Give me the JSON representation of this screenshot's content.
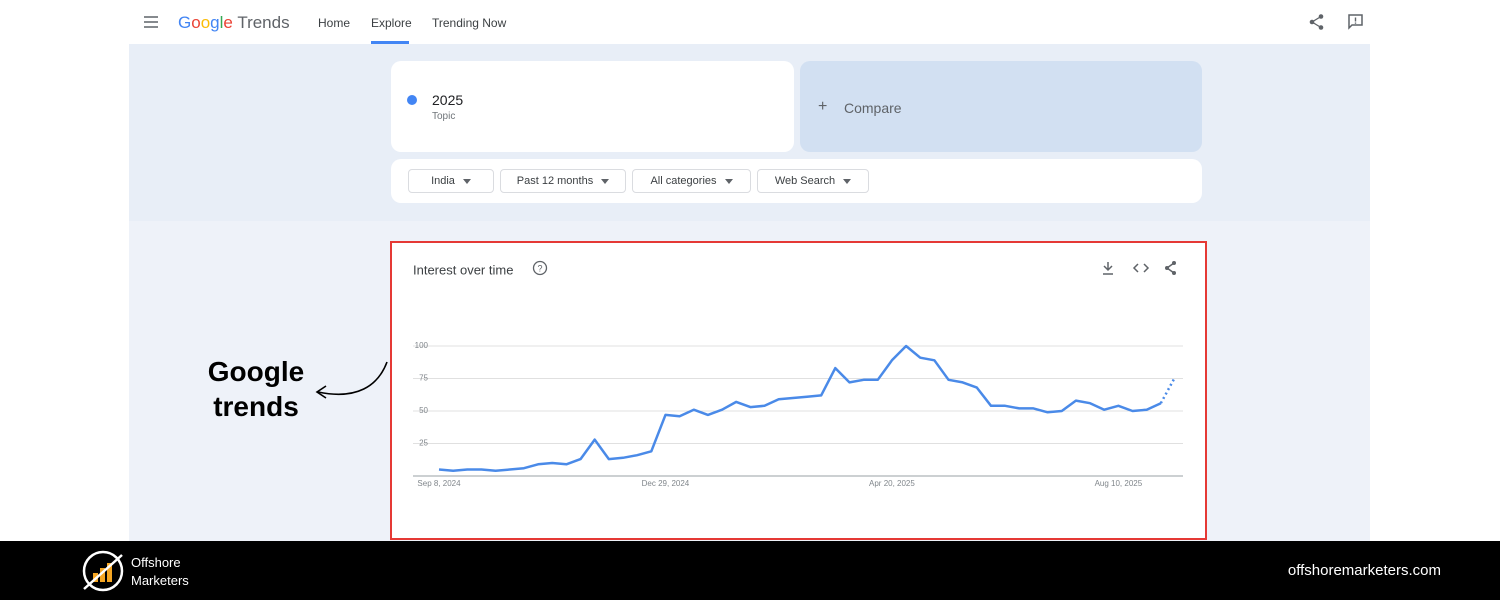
{
  "header": {
    "logo_google": "Google",
    "logo_trends": "Trends",
    "nav": [
      "Home",
      "Explore",
      "Trending Now"
    ]
  },
  "search": {
    "term": "2025",
    "term_type": "Topic",
    "compare": "Compare"
  },
  "filters": [
    "India",
    "Past 12 months",
    "All categories",
    "Web Search"
  ],
  "annotation": "Google trends",
  "chart_data": {
    "type": "line",
    "title": "Interest over time",
    "color": "#4a8ae8",
    "categories": [
      "Sep 8, 2024",
      null,
      null,
      null,
      null,
      null,
      null,
      null,
      null,
      null,
      null,
      null,
      null,
      null,
      null,
      null,
      "Dec 29, 2024",
      null,
      null,
      null,
      null,
      null,
      null,
      null,
      null,
      null,
      null,
      null,
      null,
      null,
      null,
      null,
      "Apr 20, 2025",
      null,
      null,
      null,
      null,
      null,
      null,
      null,
      null,
      null,
      null,
      null,
      null,
      null,
      null,
      null,
      "Aug 10, 2025",
      null,
      null,
      null,
      null
    ],
    "values": [
      5,
      4,
      5,
      5,
      4,
      5,
      6,
      9,
      10,
      9,
      13,
      28,
      13,
      14,
      16,
      19,
      47,
      46,
      51,
      47,
      51,
      57,
      53,
      54,
      59,
      60,
      61,
      62,
      83,
      72,
      74,
      74,
      89,
      100,
      91,
      89,
      74,
      72,
      68,
      54,
      54,
      52,
      52,
      49,
      50,
      58,
      56,
      51,
      54,
      50,
      51,
      56,
      76
    ],
    "incomplete_last_point": true,
    "ylim": [
      0,
      100
    ],
    "yticks": [
      25,
      50,
      75,
      100
    ],
    "grid": true
  },
  "footer": {
    "brand_line1": "Offshore",
    "brand_line2": "Marketers",
    "website": "offshoremarketers.com"
  }
}
